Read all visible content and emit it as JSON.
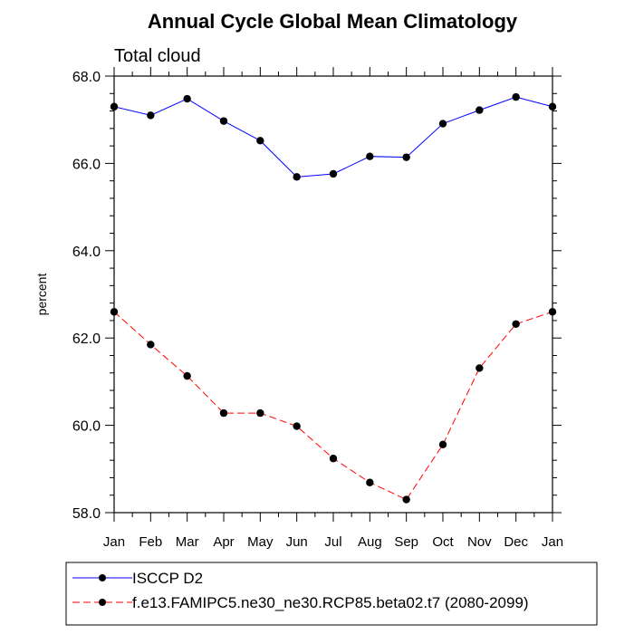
{
  "chart_data": {
    "type": "line",
    "title": "Annual Cycle Global Mean Climatology",
    "subtitle": "Total cloud",
    "xlabel": "",
    "ylabel": "percent",
    "categories": [
      "Jan",
      "Feb",
      "Mar",
      "Apr",
      "May",
      "Jun",
      "Jul",
      "Aug",
      "Sep",
      "Oct",
      "Nov",
      "Dec",
      "Jan"
    ],
    "ylim": [
      58.0,
      68.0
    ],
    "yticks": [
      "58.0",
      "60.0",
      "62.0",
      "64.0",
      "66.0",
      "68.0"
    ],
    "grid": false,
    "legend_position": "bottom",
    "series": [
      {
        "name": "ISCCP D2",
        "color": "#0000ff",
        "style": "solid",
        "values": [
          67.3,
          67.1,
          67.48,
          66.97,
          66.52,
          65.69,
          65.76,
          66.16,
          66.14,
          66.91,
          67.22,
          67.52,
          67.3
        ]
      },
      {
        "name": "f.e13.FAMIPC5.ne30_ne30.RCP85.beta02.t7 (2080-2099)",
        "color": "#ff0000",
        "style": "dashed",
        "values": [
          62.6,
          61.85,
          61.13,
          60.28,
          60.28,
          59.98,
          59.24,
          58.69,
          58.3,
          59.56,
          61.31,
          62.32,
          62.6
        ]
      }
    ]
  }
}
